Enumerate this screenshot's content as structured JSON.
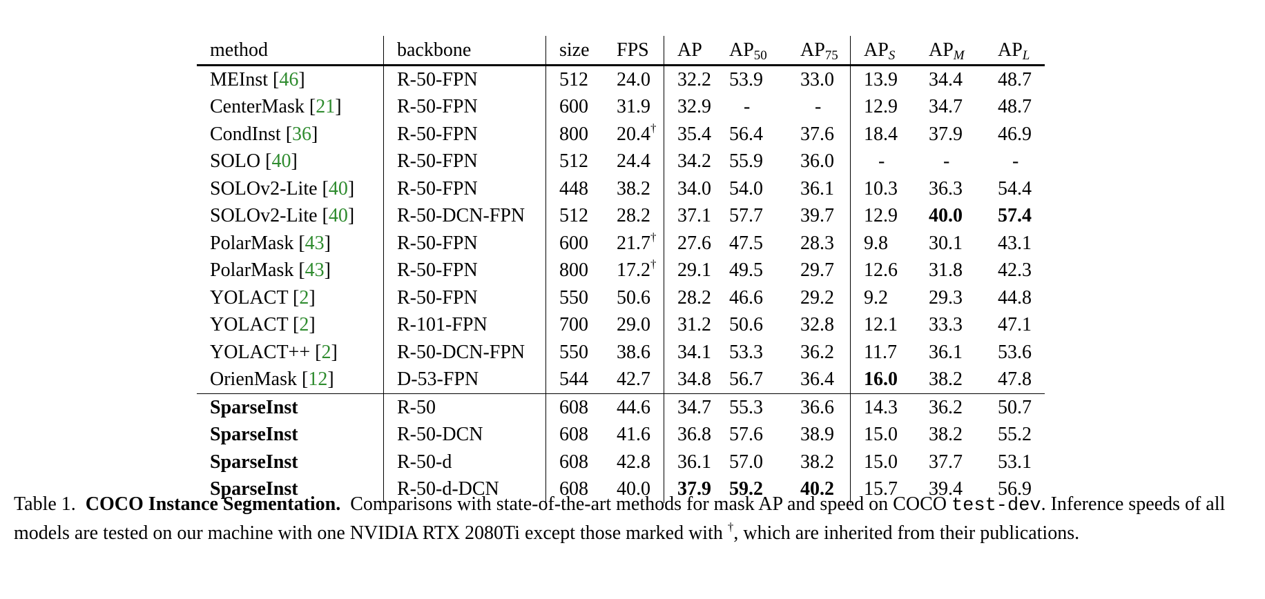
{
  "table": {
    "headers": {
      "method": "method",
      "backbone": "backbone",
      "size": "size",
      "fps": "FPS",
      "ap": "AP",
      "ap50_base": "AP",
      "ap50_sub": "50",
      "ap75_base": "AP",
      "ap75_sub": "75",
      "aps_base": "AP",
      "aps_sub": "S",
      "apm_base": "AP",
      "apm_sub": "M",
      "apl_base": "AP",
      "apl_sub": "L"
    },
    "rows": [
      {
        "method": "MEInst",
        "ref": "46",
        "backbone": "R-50-FPN",
        "size": "512",
        "fps": "24.0",
        "fps_dagger": "",
        "ap": "32.2",
        "ap50": "53.9",
        "ap75": "33.0",
        "aps": "13.9",
        "apm": "34.4",
        "apl": "48.7"
      },
      {
        "method": "CenterMask",
        "ref": "21",
        "backbone": "R-50-FPN",
        "size": "600",
        "fps": "31.9",
        "fps_dagger": "",
        "ap": "32.9",
        "ap50": "-",
        "ap75": "-",
        "aps": "12.9",
        "apm": "34.7",
        "apl": "48.7"
      },
      {
        "method": "CondInst",
        "ref": "36",
        "backbone": "R-50-FPN",
        "size": "800",
        "fps": "20.4",
        "fps_dagger": "†",
        "ap": "35.4",
        "ap50": "56.4",
        "ap75": "37.6",
        "aps": "18.4",
        "apm": "37.9",
        "apl": "46.9"
      },
      {
        "method": "SOLO",
        "ref": "40",
        "backbone": "R-50-FPN",
        "size": "512",
        "fps": "24.4",
        "fps_dagger": "",
        "ap": "34.2",
        "ap50": "55.9",
        "ap75": "36.0",
        "aps": "-",
        "apm": "-",
        "apl": "-"
      },
      {
        "method": "SOLOv2-Lite",
        "ref": "40",
        "backbone": "R-50-FPN",
        "size": "448",
        "fps": "38.2",
        "fps_dagger": "",
        "ap": "34.0",
        "ap50": "54.0",
        "ap75": "36.1",
        "aps": "10.3",
        "apm": "36.3",
        "apl": "54.4"
      },
      {
        "method": "SOLOv2-Lite",
        "ref": "40",
        "backbone": "R-50-DCN-FPN",
        "size": "512",
        "fps": "28.2",
        "fps_dagger": "",
        "ap": "37.1",
        "ap50": "57.7",
        "ap75": "39.7",
        "aps": "12.9",
        "apm": "40.0",
        "apl": "57.4"
      },
      {
        "method": "PolarMask",
        "ref": "43",
        "backbone": "R-50-FPN",
        "size": "600",
        "fps": "21.7",
        "fps_dagger": "†",
        "ap": "27.6",
        "ap50": "47.5",
        "ap75": "28.3",
        "aps": "9.8",
        "apm": "30.1",
        "apl": "43.1"
      },
      {
        "method": "PolarMask",
        "ref": "43",
        "backbone": "R-50-FPN",
        "size": "800",
        "fps": "17.2",
        "fps_dagger": "†",
        "ap": "29.1",
        "ap50": "49.5",
        "ap75": "29.7",
        "aps": "12.6",
        "apm": "31.8",
        "apl": "42.3"
      },
      {
        "method": "YOLACT",
        "ref": "2",
        "backbone": "R-50-FPN",
        "size": "550",
        "fps": "50.6",
        "fps_dagger": "",
        "ap": "28.2",
        "ap50": "46.6",
        "ap75": "29.2",
        "aps": "9.2",
        "apm": "29.3",
        "apl": "44.8"
      },
      {
        "method": "YOLACT",
        "ref": "2",
        "backbone": "R-101-FPN",
        "size": "700",
        "fps": "29.0",
        "fps_dagger": "",
        "ap": "31.2",
        "ap50": "50.6",
        "ap75": "32.8",
        "aps": "12.1",
        "apm": "33.3",
        "apl": "47.1"
      },
      {
        "method": "YOLACT++",
        "ref": "2",
        "backbone": "R-50-DCN-FPN",
        "size": "550",
        "fps": "38.6",
        "fps_dagger": "",
        "ap": "34.1",
        "ap50": "53.3",
        "ap75": "36.2",
        "aps": "11.7",
        "apm": "36.1",
        "apl": "53.6"
      },
      {
        "method": "OrienMask",
        "ref": "12",
        "backbone": "D-53-FPN",
        "size": "544",
        "fps": "42.7",
        "fps_dagger": "",
        "ap": "34.8",
        "ap50": "56.7",
        "ap75": "36.4",
        "aps": "16.0",
        "apm": "38.2",
        "apl": "47.8"
      },
      {
        "method": "SparseInst",
        "ref": "",
        "backbone": "R-50",
        "size": "608",
        "fps": "44.6",
        "fps_dagger": "",
        "ap": "34.7",
        "ap50": "55.3",
        "ap75": "36.6",
        "aps": "14.3",
        "apm": "36.2",
        "apl": "50.7"
      },
      {
        "method": "SparseInst",
        "ref": "",
        "backbone": "R-50-DCN",
        "size": "608",
        "fps": "41.6",
        "fps_dagger": "",
        "ap": "36.8",
        "ap50": "57.6",
        "ap75": "38.9",
        "aps": "15.0",
        "apm": "38.2",
        "apl": "55.2"
      },
      {
        "method": "SparseInst",
        "ref": "",
        "backbone": "R-50-d",
        "size": "608",
        "fps": "42.8",
        "fps_dagger": "",
        "ap": "36.1",
        "ap50": "57.0",
        "ap75": "38.2",
        "aps": "15.0",
        "apm": "37.7",
        "apl": "53.1"
      },
      {
        "method": "SparseInst",
        "ref": "",
        "backbone": "R-50-d-DCN",
        "size": "608",
        "fps": "40.0",
        "fps_dagger": "",
        "ap": "37.9",
        "ap50": "59.2",
        "ap75": "40.2",
        "aps": "15.7",
        "apm": "39.4",
        "apl": "56.9"
      }
    ]
  },
  "caption": {
    "label": "Table 1.",
    "title": "COCO Instance Segmentation.",
    "text1": "Comparisons with state-of-the-art methods for mask AP and speed on COCO",
    "code": "test-dev",
    "text2": ". Inference speeds of all models are tested on our machine with one NVIDIA RTX 2080Ti except those marked with",
    "dagger": "†",
    "text3": ", which are inherited from their publications."
  }
}
